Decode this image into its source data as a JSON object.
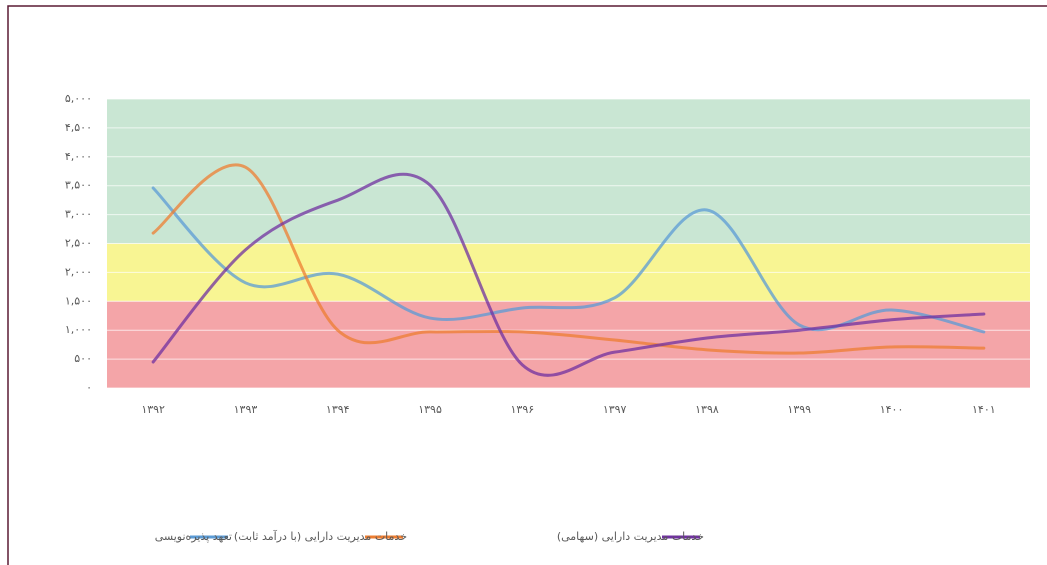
{
  "chart_data": {
    "type": "line",
    "categories": [
      "۱۳۹۲",
      "۱۳۹۳",
      "۱۳۹۴",
      "۱۳۹۵",
      "۱۳۹۶",
      "۱۳۹۷",
      "۱۳۹۸",
      "۱۳۹۹",
      "۱۴۰۰",
      "۱۴۰۱"
    ],
    "series": [
      {
        "name": "تعهد پذیره‌نویسی",
        "color": "#5b9bd5",
        "values": [
          3460,
          1820,
          1970,
          1210,
          1385,
          1560,
          3080,
          1090,
          1350,
          970
        ]
      },
      {
        "name": "خدمات مدیریت دارایی (با درآمد ثابت)",
        "color": "#ed7d31",
        "values": [
          2680,
          3820,
          1000,
          970,
          970,
          830,
          660,
          605,
          710,
          690
        ]
      },
      {
        "name": "خدمات مدیریت دارایی (سهامی)",
        "color": "#7030a0",
        "values": [
          450,
          2390,
          3250,
          3510,
          400,
          620,
          865,
          1000,
          1180,
          1280
        ]
      }
    ],
    "ylim": [
      0,
      5000
    ],
    "yticks": [
      {
        "value": 0,
        "label": "۰"
      },
      {
        "value": 500,
        "label": "۵۰۰"
      },
      {
        "value": 1000,
        "label": "۱,۰۰۰"
      },
      {
        "value": 1500,
        "label": "۱,۵۰۰"
      },
      {
        "value": 2000,
        "label": "۲,۰۰۰"
      },
      {
        "value": 2500,
        "label": "۲,۵۰۰"
      },
      {
        "value": 3000,
        "label": "۳,۰۰۰"
      },
      {
        "value": 3500,
        "label": "۳,۵۰۰"
      },
      {
        "value": 4000,
        "label": "۴,۰۰۰"
      },
      {
        "value": 4500,
        "label": "۴,۵۰۰"
      },
      {
        "value": 5000,
        "label": "۵,۰۰۰"
      }
    ],
    "bands": [
      {
        "from": 0,
        "to": 1500,
        "color": "#f4a5a8"
      },
      {
        "from": 1500,
        "to": 2500,
        "color": "#f8f593"
      },
      {
        "from": 2500,
        "to": 5000,
        "color": "#c9e6d3"
      }
    ],
    "grid": true,
    "smooth": true,
    "legend": "bottom"
  }
}
